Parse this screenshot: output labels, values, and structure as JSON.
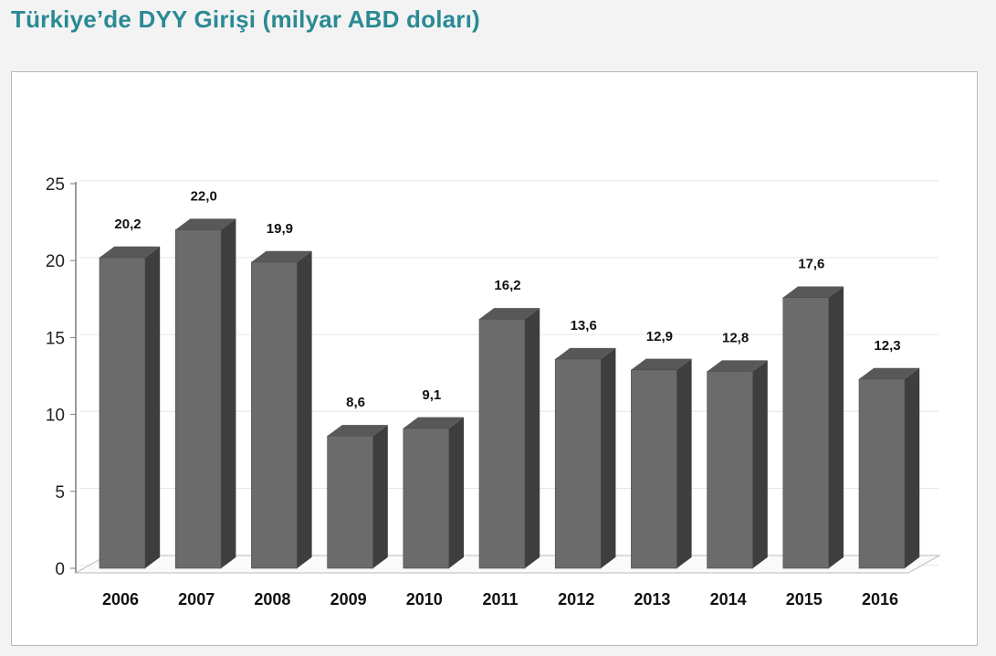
{
  "header": {
    "title": "Türkiye’de DYY Girişi (milyar ABD doları)"
  },
  "colors": {
    "title": "#2a8a94",
    "bar_front": "#6b6b6b",
    "bar_side": "#3e3e3e",
    "bar_top": "#585858"
  },
  "chart_data": {
    "type": "bar",
    "title": "Türkiye’de DYY Girişi (milyar ABD doları)",
    "xlabel": "",
    "ylabel": "",
    "categories": [
      "2006",
      "2007",
      "2008",
      "2009",
      "2010",
      "2011",
      "2012",
      "2013",
      "2014",
      "2015",
      "2016"
    ],
    "values": [
      20.2,
      22.0,
      19.9,
      8.6,
      9.1,
      16.2,
      13.6,
      12.9,
      12.8,
      17.6,
      12.3
    ],
    "data_labels": [
      "20,2",
      "22,0",
      "19,9",
      "8,6",
      "9,1",
      "16,2",
      "13,6",
      "12,9",
      "12,8",
      "17,6",
      "12,3"
    ],
    "ylim": [
      0,
      25
    ],
    "yticks": [
      0,
      5,
      10,
      15,
      20,
      25
    ],
    "grid": true,
    "legend": "none",
    "style": "3d-column"
  }
}
